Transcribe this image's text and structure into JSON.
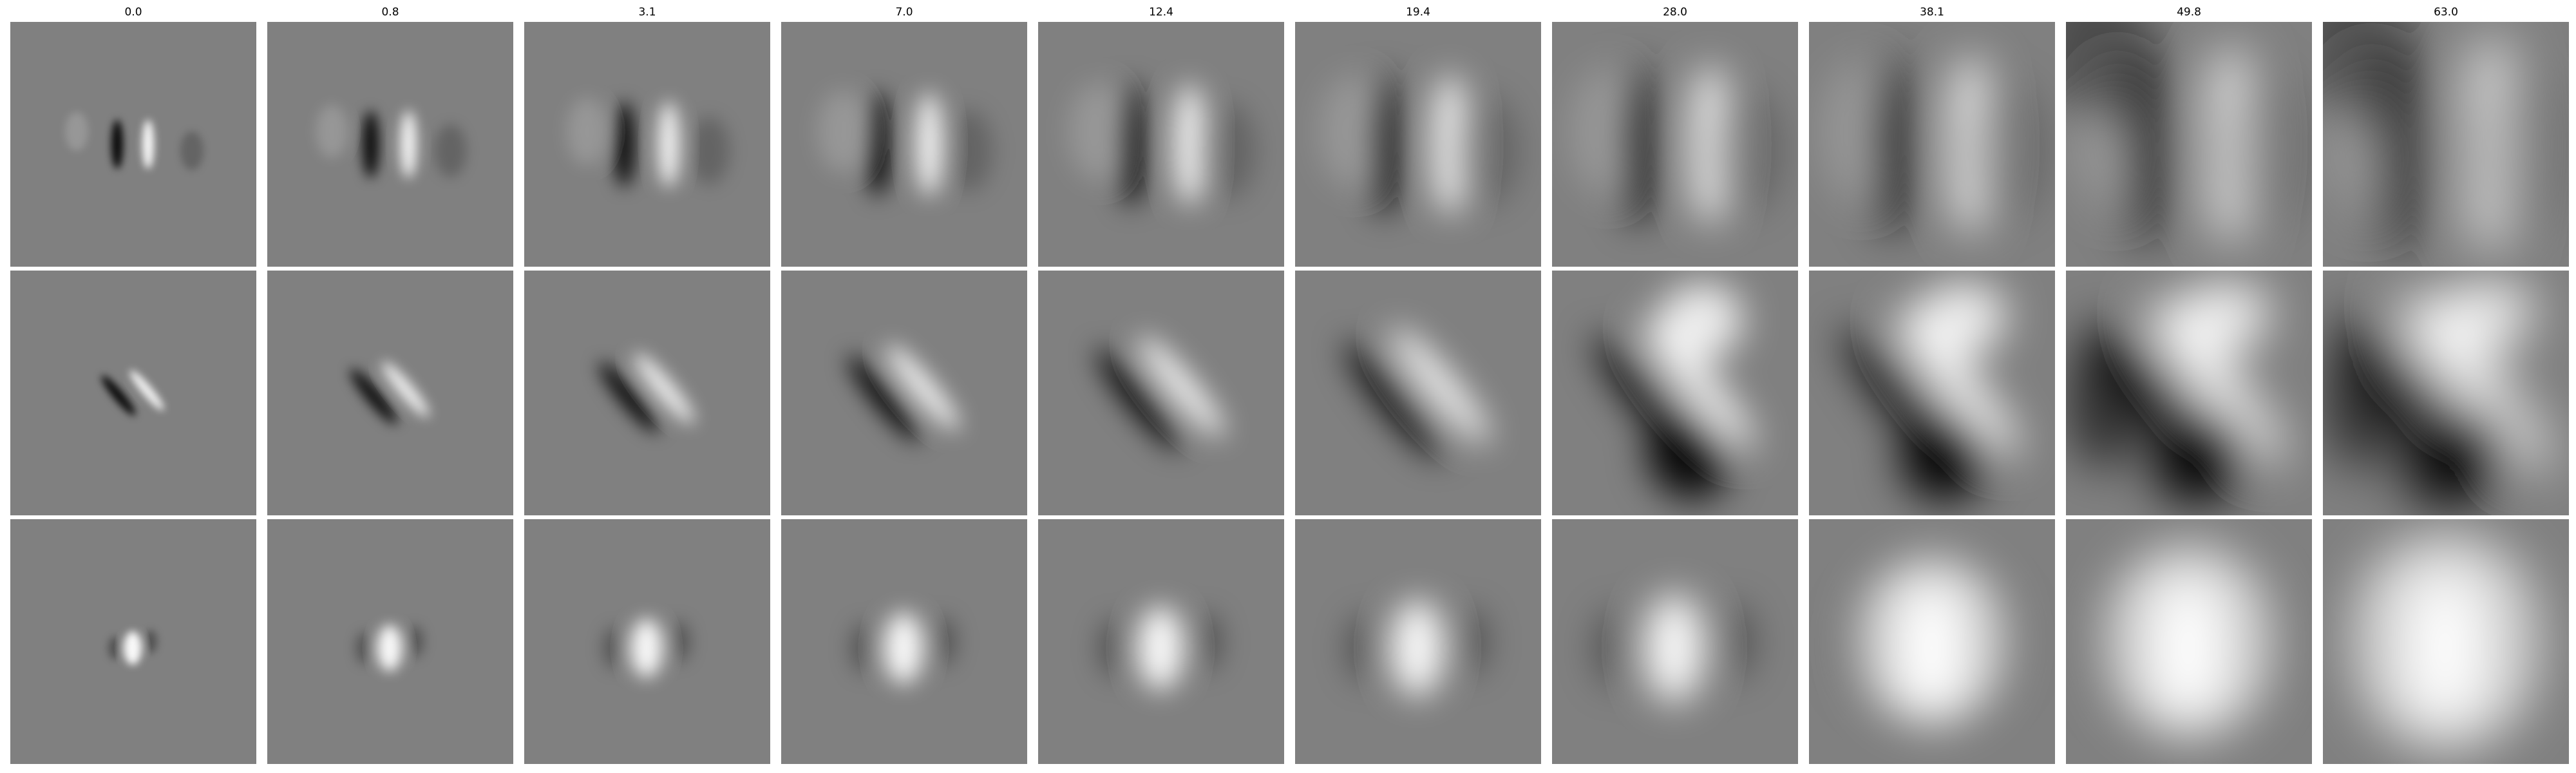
{
  "figure": {
    "columns": [
      "0.0",
      "0.8",
      "3.1",
      "7.0",
      "12.4",
      "19.4",
      "28.0",
      "38.1",
      "49.8",
      "63.0"
    ],
    "row_count": 3,
    "background_gray": "#808080",
    "colors": {
      "dark": "#000000",
      "light": "#ffffff",
      "neutral": "#808080"
    }
  }
}
